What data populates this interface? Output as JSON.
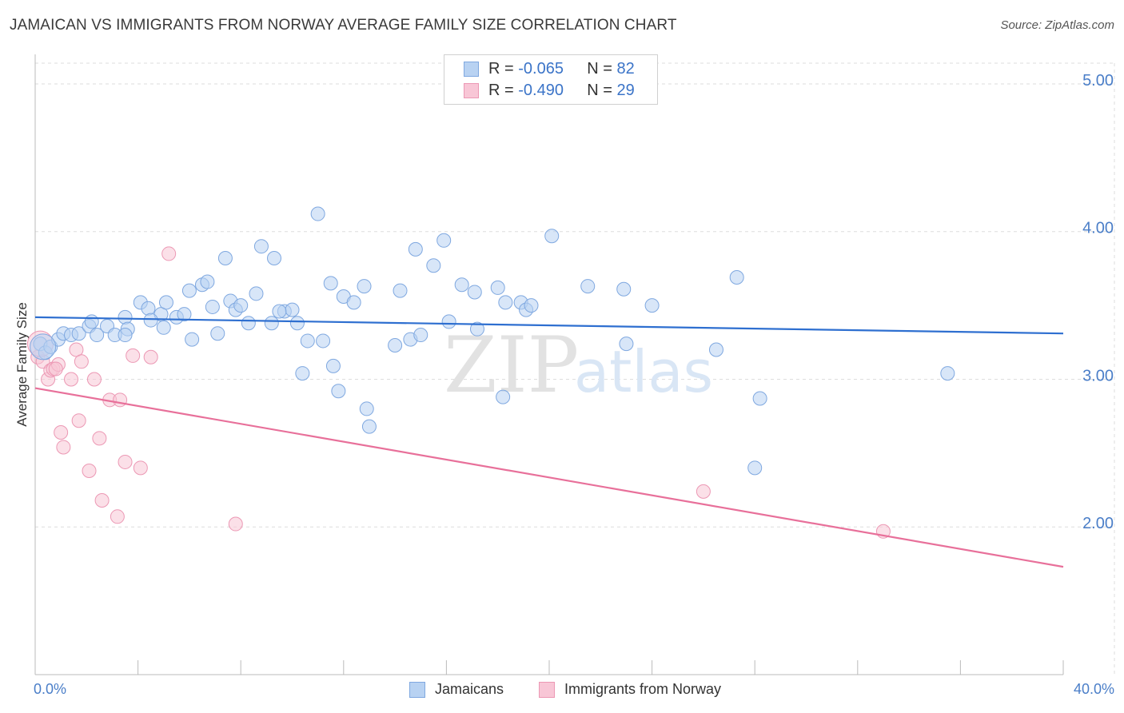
{
  "title": "JAMAICAN VS IMMIGRANTS FROM NORWAY AVERAGE FAMILY SIZE CORRELATION CHART",
  "source": "Source: ZipAtlas.com",
  "watermark": {
    "zip": "ZIP",
    "atlas": "atlas"
  },
  "legend_top": [
    {
      "r_label": "R =",
      "r_value": "-0.065",
      "n_label": "N =",
      "n_value": "82"
    },
    {
      "r_label": "R =",
      "r_value": "-0.490",
      "n_label": "N =",
      "n_value": "29"
    }
  ],
  "legend_bottom": [
    {
      "label": "Jamaicans"
    },
    {
      "label": "Immigrants from Norway"
    }
  ],
  "colors": {
    "blue_fill": "#b8d2f2",
    "blue_stroke": "#7fa8e0",
    "blue_line": "#2e6fd0",
    "pink_fill": "#f8c6d6",
    "pink_stroke": "#ec98b4",
    "pink_line": "#e8709a",
    "axis_text": "#4a7ec8",
    "grid": "#dddddd"
  },
  "chart_data": {
    "type": "scatter",
    "xlabel": "",
    "ylabel": "Average Family Size",
    "xlim": [
      0,
      40
    ],
    "ylim": [
      1.0,
      5.2
    ],
    "x_tick_labels": [
      "0.0%",
      "40.0%"
    ],
    "y_ticks": [
      {
        "value": 5.0,
        "label": "5.00"
      },
      {
        "value": 4.0,
        "label": "4.00"
      },
      {
        "value": 3.0,
        "label": "3.00"
      },
      {
        "value": 2.0,
        "label": "2.00"
      }
    ],
    "grid": true,
    "series": [
      {
        "name": "Jamaicans",
        "color": "blue",
        "trend": {
          "x": [
            0,
            40
          ],
          "y": [
            3.42,
            3.31
          ]
        },
        "points": [
          [
            0.2,
            3.24
          ],
          [
            0.4,
            3.18
          ],
          [
            0.6,
            3.22
          ],
          [
            0.9,
            3.27
          ],
          [
            1.1,
            3.31
          ],
          [
            1.4,
            3.3
          ],
          [
            1.7,
            3.31
          ],
          [
            2.1,
            3.36
          ],
          [
            2.2,
            3.39
          ],
          [
            2.4,
            3.3
          ],
          [
            2.8,
            3.36
          ],
          [
            3.1,
            3.3
          ],
          [
            3.5,
            3.42
          ],
          [
            3.6,
            3.34
          ],
          [
            4.1,
            3.52
          ],
          [
            4.4,
            3.48
          ],
          [
            4.9,
            3.44
          ],
          [
            5.0,
            3.35
          ],
          [
            5.1,
            3.52
          ],
          [
            5.5,
            3.42
          ],
          [
            5.8,
            3.44
          ],
          [
            6.1,
            3.27
          ],
          [
            6.0,
            3.6
          ],
          [
            6.5,
            3.64
          ],
          [
            6.7,
            3.66
          ],
          [
            6.9,
            3.49
          ],
          [
            7.1,
            3.31
          ],
          [
            7.4,
            3.82
          ],
          [
            7.6,
            3.53
          ],
          [
            7.8,
            3.47
          ],
          [
            8.0,
            3.5
          ],
          [
            8.3,
            3.38
          ],
          [
            8.6,
            3.58
          ],
          [
            8.8,
            3.9
          ],
          [
            9.2,
            3.38
          ],
          [
            9.3,
            3.82
          ],
          [
            9.7,
            3.46
          ],
          [
            10.0,
            3.47
          ],
          [
            10.2,
            3.38
          ],
          [
            10.4,
            3.04
          ],
          [
            10.6,
            3.26
          ],
          [
            11.0,
            4.12
          ],
          [
            11.2,
            3.26
          ],
          [
            11.5,
            3.65
          ],
          [
            11.6,
            3.09
          ],
          [
            11.8,
            2.92
          ],
          [
            12.0,
            3.56
          ],
          [
            12.4,
            3.52
          ],
          [
            12.8,
            3.63
          ],
          [
            12.9,
            2.8
          ],
          [
            13.0,
            2.68
          ],
          [
            14.0,
            3.23
          ],
          [
            14.2,
            3.6
          ],
          [
            14.6,
            3.27
          ],
          [
            14.8,
            3.88
          ],
          [
            15.5,
            3.77
          ],
          [
            15.9,
            3.94
          ],
          [
            16.1,
            3.39
          ],
          [
            16.6,
            3.64
          ],
          [
            17.1,
            3.59
          ],
          [
            17.2,
            3.34
          ],
          [
            18.0,
            3.62
          ],
          [
            18.2,
            2.88
          ],
          [
            18.3,
            3.52
          ],
          [
            18.9,
            3.52
          ],
          [
            19.1,
            3.47
          ],
          [
            19.3,
            3.5
          ],
          [
            20.1,
            3.97
          ],
          [
            21.5,
            3.63
          ],
          [
            22.9,
            3.61
          ],
          [
            23.0,
            3.24
          ],
          [
            24.0,
            3.5
          ],
          [
            26.5,
            3.2
          ],
          [
            27.3,
            3.69
          ],
          [
            28.2,
            2.87
          ],
          [
            28.0,
            2.4
          ],
          [
            35.5,
            3.04
          ],
          [
            3.5,
            3.3
          ],
          [
            4.5,
            3.4
          ],
          [
            9.5,
            3.46
          ],
          [
            15.0,
            3.3
          ],
          [
            0.3,
            3.22
          ]
        ]
      },
      {
        "name": "Immigrants from Norway",
        "color": "pink",
        "trend": {
          "x": [
            0,
            40
          ],
          "y": [
            2.94,
            1.73
          ]
        },
        "points": [
          [
            0.1,
            3.15
          ],
          [
            0.3,
            3.12
          ],
          [
            0.5,
            3.0
          ],
          [
            0.6,
            3.06
          ],
          [
            0.7,
            3.07
          ],
          [
            0.9,
            3.1
          ],
          [
            1.0,
            2.64
          ],
          [
            1.1,
            2.54
          ],
          [
            1.4,
            3.0
          ],
          [
            1.6,
            3.2
          ],
          [
            1.7,
            2.72
          ],
          [
            1.8,
            3.12
          ],
          [
            2.1,
            2.38
          ],
          [
            2.3,
            3.0
          ],
          [
            2.5,
            2.6
          ],
          [
            2.6,
            2.18
          ],
          [
            2.9,
            2.86
          ],
          [
            3.2,
            2.07
          ],
          [
            3.3,
            2.86
          ],
          [
            3.5,
            2.44
          ],
          [
            3.8,
            3.16
          ],
          [
            4.1,
            2.4
          ],
          [
            4.5,
            3.15
          ],
          [
            5.2,
            3.85
          ],
          [
            7.8,
            2.02
          ],
          [
            26.0,
            2.24
          ],
          [
            33.0,
            1.97
          ],
          [
            0.2,
            3.24
          ],
          [
            0.8,
            3.07
          ]
        ]
      }
    ]
  }
}
